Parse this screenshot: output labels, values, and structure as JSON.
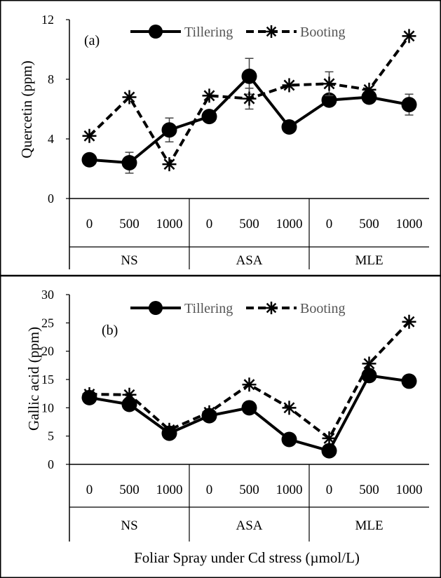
{
  "chart_data": [
    {
      "type": "line",
      "panel_label": "(a)",
      "ylabel": "Quercetin (ppm)",
      "ylim": [
        0,
        12
      ],
      "yticks": [
        "0",
        "4",
        "8",
        "12"
      ],
      "x_levels": [
        "0",
        "500",
        "1000",
        "0",
        "500",
        "1000",
        "0",
        "500",
        "1000"
      ],
      "groups": [
        "NS",
        "ASA",
        "MLE"
      ],
      "legend": [
        "Tillering",
        "Booting"
      ],
      "legend_position": "top",
      "series": [
        {
          "name": "Tillering",
          "style": "solid-circle",
          "color": "#000000",
          "values": [
            2.6,
            2.4,
            4.6,
            5.5,
            8.2,
            4.8,
            6.6,
            6.8,
            6.3
          ],
          "errors": [
            0.3,
            0.7,
            0.8,
            0.3,
            1.2,
            0.3,
            0.4,
            0.4,
            0.7
          ]
        },
        {
          "name": "Booting",
          "style": "dashed-star",
          "color": "#000000",
          "values": [
            4.2,
            6.8,
            2.3,
            6.9,
            6.7,
            7.6,
            7.7,
            7.3,
            10.9
          ],
          "errors": [
            0.0,
            0.0,
            0.0,
            0.0,
            0.7,
            0.0,
            0.8,
            0.0,
            0.0
          ]
        }
      ]
    },
    {
      "type": "line",
      "panel_label": "(b)",
      "ylabel": "Gallic acid (ppm)",
      "xlabel": "Foliar Spray under Cd stress (µmol/L)",
      "ylim": [
        0,
        30
      ],
      "yticks": [
        "0",
        "5",
        "10",
        "15",
        "20",
        "25",
        "30"
      ],
      "x_levels": [
        "0",
        "500",
        "1000",
        "0",
        "500",
        "1000",
        "0",
        "500",
        "1000"
      ],
      "groups": [
        "NS",
        "ASA",
        "MLE"
      ],
      "legend": [
        "Tillering",
        "Booting"
      ],
      "legend_position": "top",
      "series": [
        {
          "name": "Tillering",
          "style": "solid-circle",
          "color": "#000000",
          "values": [
            11.8,
            10.6,
            5.5,
            8.6,
            10.0,
            4.4,
            2.4,
            15.7,
            14.7
          ]
        },
        {
          "name": "Booting",
          "style": "dashed-star",
          "color": "#000000",
          "values": [
            12.4,
            12.3,
            6.1,
            9.2,
            14.1,
            10.0,
            4.6,
            17.8,
            25.2
          ]
        }
      ]
    }
  ]
}
